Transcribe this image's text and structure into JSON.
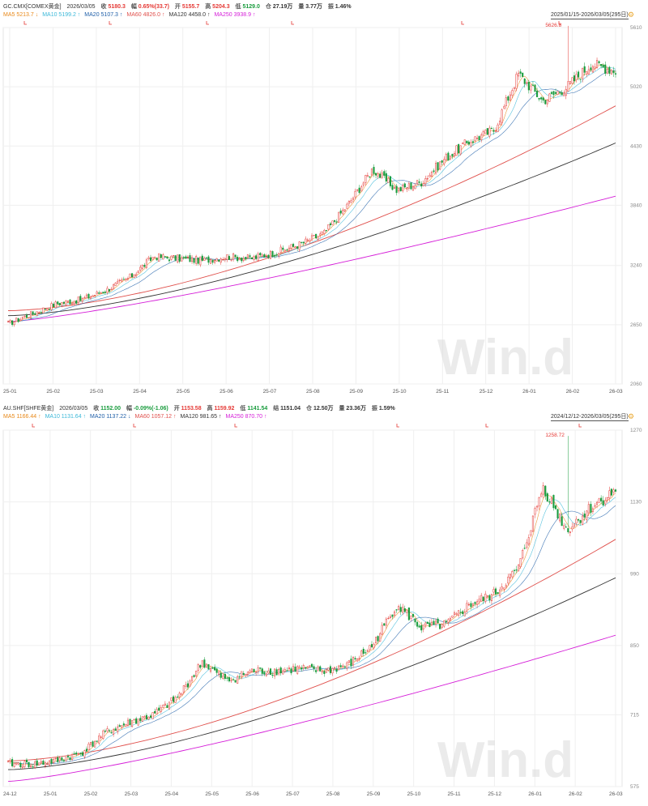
{
  "panels": [
    {
      "id": "top",
      "header": {
        "symbol": "GC.CMX[COMEX黄金]",
        "date": "2026/03/05",
        "close_label": "收",
        "close": "5180.3",
        "change_label": "幅",
        "change": "0.65%(33.7)",
        "open_label": "开",
        "open": "5155.7",
        "high_label": "高",
        "high": "5204.3",
        "low_label": "低",
        "low": "5129.0",
        "vol_label": "仓",
        "vol": "27.19万",
        "amt_label": "量",
        "amt": "3.77万",
        "turn_label": "振",
        "turn": "1.46%"
      },
      "ma_row": [
        {
          "label": "MA5 5213.7",
          "arrow": "↓",
          "color": "#e8891a"
        },
        {
          "label": "MA10 5199.2",
          "arrow": "↑",
          "color": "#3bb8d8"
        },
        {
          "label": "MA20 5107.3",
          "arrow": "↑",
          "color": "#1f5fa8"
        },
        {
          "label": "MA60 4826.0",
          "arrow": "↑",
          "color": "#e0504c"
        },
        {
          "label": "MA120 4458.0",
          "arrow": "↑",
          "color": "#333333"
        },
        {
          "label": "MA250 3938.9",
          "arrow": "↑",
          "color": "#d51ed8"
        }
      ],
      "range": "2025/01/15-2026/03/05(295日)",
      "peak_label": "5626.8",
      "watermark": "Win.d",
      "chart_data": {
        "type": "candlestick",
        "yticks": [
          2060,
          2650,
          3240,
          3840,
          4430,
          5020,
          5610
        ],
        "ylim": [
          2060,
          5610
        ],
        "xticks": [
          "25-01",
          "25-02",
          "25-03",
          "25-04",
          "25-05",
          "25-06",
          "25-07",
          "25-08",
          "25-09",
          "25-10",
          "25-11",
          "25-12",
          "26-01",
          "26-02",
          "26-03"
        ],
        "close_anchors": [
          2660,
          2760,
          2860,
          2900,
          2990,
          3120,
          3330,
          3310,
          3290,
          3330,
          3310,
          3370,
          3450,
          3560,
          3850,
          4200,
          3990,
          4070,
          4310,
          4480,
          4590,
          5150,
          4880,
          5020,
          5250,
          5180
        ],
        "high_anchor": 5626.8,
        "ma250_range": [
          2680,
          3930
        ],
        "ma120_range": [
          2740,
          4460
        ],
        "ma60_range": [
          2790,
          4830
        ]
      }
    },
    {
      "id": "bottom",
      "header": {
        "symbol": "AU.SHF[SHFE黄金]",
        "date": "2026/03/05",
        "close_label": "收",
        "close": "1152.00",
        "change_label": "幅",
        "change": "-0.09%(-1.06)",
        "open_label": "开",
        "open": "1153.58",
        "high_label": "高",
        "high": "1159.92",
        "low_label": "低",
        "low": "1141.54",
        "vol_label": "结",
        "vol": "1151.04",
        "amt_label": "仓",
        "amt": "12.50万",
        "turn_label": "量",
        "turn": "23.36万",
        "extra_label": "振",
        "extra": "1.59%"
      },
      "ma_row": [
        {
          "label": "MA5 1166.44",
          "arrow": "↑",
          "color": "#e8891a"
        },
        {
          "label": "MA10 1131.64",
          "arrow": "↑",
          "color": "#3bb8d8"
        },
        {
          "label": "MA20 1137.22",
          "arrow": "↓",
          "color": "#1f5fa8"
        },
        {
          "label": "MA60 1057.12",
          "arrow": "↑",
          "color": "#e0504c"
        },
        {
          "label": "MA120 981.65",
          "arrow": "↑",
          "color": "#333333"
        },
        {
          "label": "MA250 870.70",
          "arrow": "↑",
          "color": "#d51ed8"
        }
      ],
      "range": "2024/12/12-2026/03/05(295日)",
      "peak_label": "1258.72",
      "watermark": "Win.d",
      "chart_data": {
        "type": "candlestick",
        "yticks": [
          575,
          715,
          850,
          990,
          1130,
          1270
        ],
        "ylim": [
          575,
          1270
        ],
        "xticks": [
          "24-12",
          "25-01",
          "25-02",
          "25-03",
          "25-04",
          "25-05",
          "25-06",
          "25-07",
          "25-08",
          "25-09",
          "25-10",
          "25-11",
          "25-12",
          "26-01",
          "26-02",
          "26-03"
        ],
        "close_anchors": [
          620,
          618,
          625,
          640,
          680,
          700,
          715,
          750,
          818,
          780,
          800,
          800,
          805,
          800,
          812,
          850,
          930,
          885,
          890,
          930,
          950,
          1000,
          1160,
          1075,
          1120,
          1152
        ],
        "high_anchor": 1258.72,
        "ma250_range": [
          585,
          870
        ],
        "ma120_range": [
          608,
          982
        ],
        "ma60_range": [
          625,
          1057
        ]
      }
    }
  ]
}
